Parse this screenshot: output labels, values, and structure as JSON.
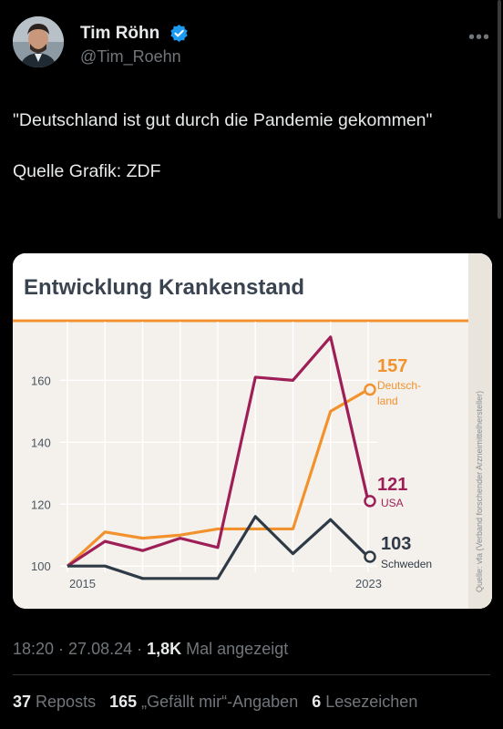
{
  "author": {
    "name": "Tim Röhn",
    "handle": "@Tim_Roehn"
  },
  "tweet": {
    "line1": "\"Deutschland ist gut durch die Pandemie gekommen\"",
    "line2": "Quelle Grafik: ZDF"
  },
  "chart_data": {
    "type": "line",
    "title": "Entwicklung Krankenstand",
    "x": [
      2015,
      2016,
      2017,
      2018,
      2019,
      2020,
      2021,
      2022,
      2023
    ],
    "x_tick_labels": [
      "2015",
      "2023"
    ],
    "y_ticks": [
      "100",
      "120",
      "140",
      "160"
    ],
    "ylim": [
      98,
      176
    ],
    "series": [
      {
        "name": "Deutsch-land",
        "color": "#f2922e",
        "end_label": "157",
        "values": [
          100,
          111,
          109,
          110,
          112,
          112,
          112,
          150,
          157
        ]
      },
      {
        "name": "USA",
        "color": "#9e1f57",
        "end_label": "121",
        "values": [
          100,
          108,
          105,
          109,
          106,
          161,
          160,
          174,
          121
        ]
      },
      {
        "name": "Schweden",
        "color": "#2e3a46",
        "end_label": "103",
        "values": [
          100,
          100,
          96,
          96,
          96,
          116,
          104,
          115,
          103
        ]
      }
    ],
    "source": "Quelle: vfa (Verband forschender Arzneimittelhersteller)"
  },
  "meta": {
    "time": "18:20 · 27.08.24 · ",
    "views": "1,8K",
    "views_label": " Mal angezeigt"
  },
  "stats": {
    "reposts_count": "37",
    "reposts_label": " Reposts",
    "likes_count": "165",
    "likes_label": " „Gefällt mir“-Angaben",
    "bookmarks_count": "6",
    "bookmarks_label": " Lesezeichen"
  },
  "colors": {
    "verified": "#1d9bf0",
    "accent_rule": "#f2922e"
  }
}
